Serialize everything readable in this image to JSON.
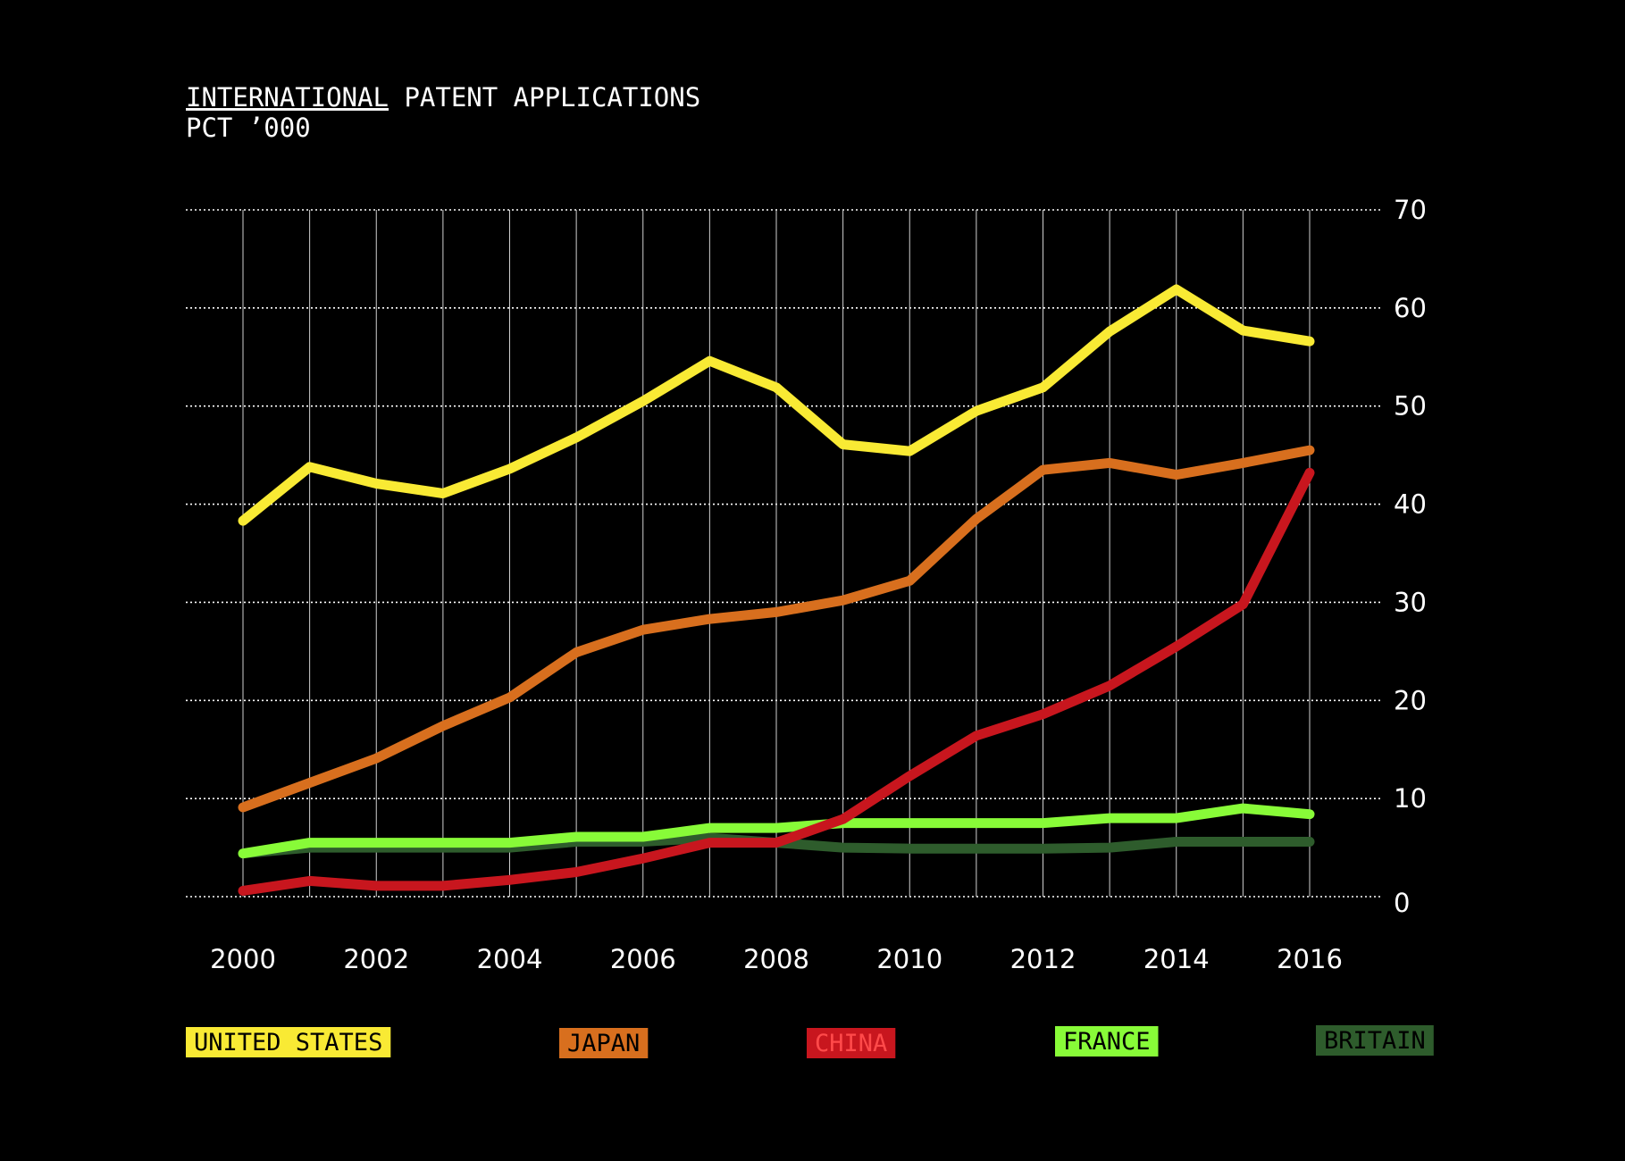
{
  "chart_data": {
    "type": "line",
    "title_underlined": "INTERNATIONAL",
    "title_rest": " PATENT APPLICATIONS",
    "subtitle": "PCT ’000",
    "x": [
      2000,
      2001,
      2002,
      2003,
      2004,
      2005,
      2006,
      2007,
      2008,
      2009,
      2010,
      2011,
      2012,
      2013,
      2014,
      2015,
      2016
    ],
    "x_tick_labels": [
      "2000",
      "2002",
      "2004",
      "2006",
      "2008",
      "2010",
      "2012",
      "2014",
      "2016"
    ],
    "y_tick_labels": [
      "0",
      "10",
      "20",
      "30",
      "40",
      "50",
      "60",
      "70"
    ],
    "ylim": [
      0,
      70
    ],
    "xlim": [
      2000,
      2016
    ],
    "grid": true,
    "y_axis_position": "right",
    "legend_position": "bottom",
    "series": [
      {
        "name": "UNITED STATES",
        "color": "#f9ea34",
        "text_color": "#000000",
        "values": [
          38.3,
          43.8,
          42.1,
          41.1,
          43.6,
          46.8,
          50.5,
          54.6,
          51.9,
          46.1,
          45.4,
          49.5,
          51.9,
          57.6,
          61.9,
          57.7,
          56.6
        ]
      },
      {
        "name": "JAPAN",
        "color": "#d86f1e",
        "text_color": "#000000",
        "values": [
          9.1,
          11.6,
          14.1,
          17.4,
          20.3,
          24.9,
          27.2,
          28.3,
          29.0,
          30.2,
          32.2,
          38.5,
          43.5,
          44.2,
          43.0,
          44.2,
          45.5
        ]
      },
      {
        "name": "CHINA",
        "color": "#c8161e",
        "text_color": "#ff4a4a",
        "values": [
          0.6,
          1.6,
          1.1,
          1.1,
          1.7,
          2.5,
          3.9,
          5.5,
          5.5,
          7.9,
          12.3,
          16.4,
          18.6,
          21.5,
          25.5,
          29.8,
          43.2
        ]
      },
      {
        "name": "FRANCE",
        "color": "#88fb38",
        "text_color": "#000000",
        "values": [
          4.4,
          5.5,
          5.5,
          5.5,
          5.5,
          6.1,
          6.1,
          7.0,
          7.0,
          7.5,
          7.5,
          7.5,
          7.5,
          8.0,
          8.0,
          9.0,
          8.4
        ]
      },
      {
        "name": "BRITAIN",
        "color": "#2e5c2c",
        "text_color": "#000000",
        "values": [
          4.4,
          5.0,
          5.0,
          5.0,
          5.0,
          5.6,
          5.6,
          6.0,
          5.5,
          5.0,
          4.9,
          4.9,
          4.9,
          5.0,
          5.6,
          5.6,
          5.6
        ]
      }
    ]
  }
}
